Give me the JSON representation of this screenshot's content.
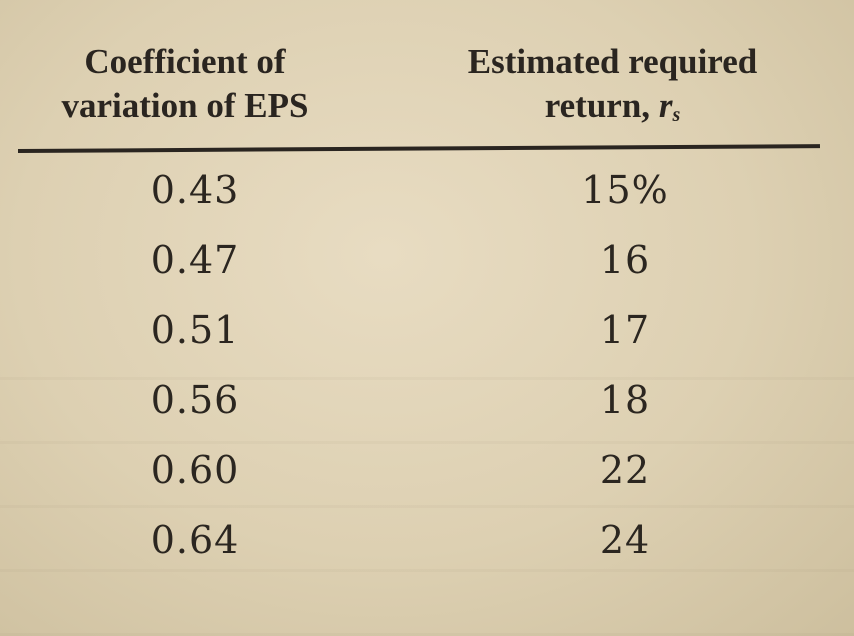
{
  "table": {
    "headers": {
      "col1_line1": "Coefficient of",
      "col1_line2": "variation of EPS",
      "col2_line1": "Estimated required",
      "col2_line2_text": "return,",
      "col2_symbol": "r",
      "col2_subscript": "s"
    },
    "rows": [
      {
        "cv": "0.43",
        "ret": "15%"
      },
      {
        "cv": "0.47",
        "ret": "16"
      },
      {
        "cv": "0.51",
        "ret": "17"
      },
      {
        "cv": "0.56",
        "ret": "18"
      },
      {
        "cv": "0.60",
        "ret": "22"
      },
      {
        "cv": "0.64",
        "ret": "24"
      }
    ]
  }
}
